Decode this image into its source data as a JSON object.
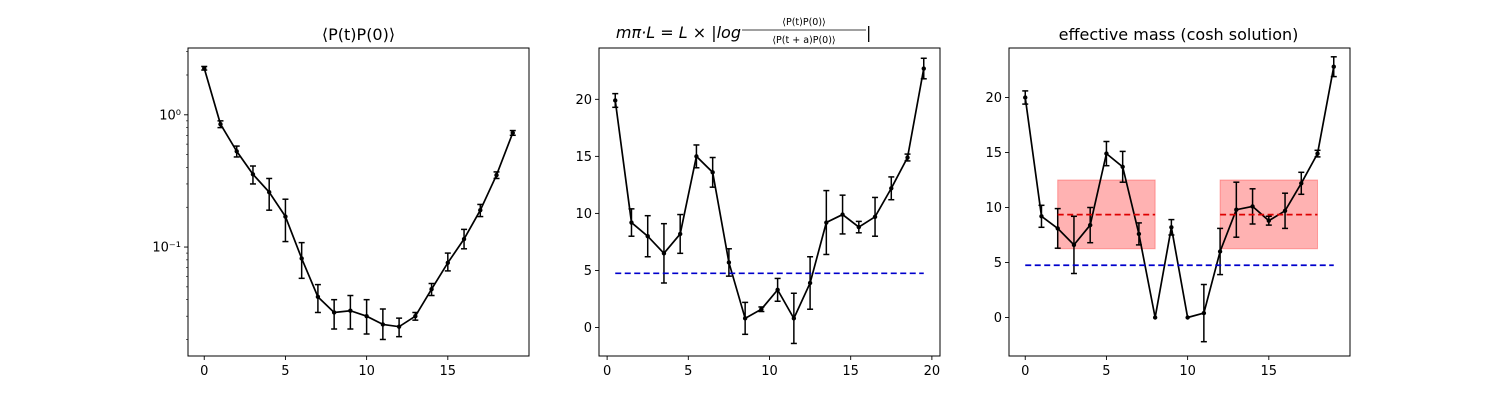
{
  "chart_data": [
    {
      "type": "line",
      "title": "⟨P(t)P(0)⟩",
      "yscale": "log",
      "xlim": [
        -1,
        20
      ],
      "ylim": [
        0.015,
        3.2
      ],
      "xticks": [
        0,
        5,
        10,
        15
      ],
      "yticks": [
        {
          "value": 1,
          "label": "10⁰"
        },
        {
          "value": 0.1,
          "label": "10⁻¹"
        }
      ],
      "series": [
        {
          "color": "#000000",
          "x": [
            0,
            1,
            2,
            3,
            4,
            5,
            6,
            7,
            8,
            9,
            10,
            11,
            12,
            13,
            14,
            15,
            16,
            17,
            18,
            19
          ],
          "y": [
            2.25,
            0.85,
            0.53,
            0.355,
            0.26,
            0.17,
            0.082,
            0.042,
            0.032,
            0.033,
            0.03,
            0.026,
            0.025,
            0.03,
            0.048,
            0.076,
            0.115,
            0.19,
            0.35,
            0.73
          ],
          "yerr_low": [
            2.18,
            0.8,
            0.48,
            0.3,
            0.19,
            0.11,
            0.058,
            0.032,
            0.024,
            0.024,
            0.022,
            0.02,
            0.021,
            0.028,
            0.043,
            0.066,
            0.097,
            0.17,
            0.33,
            0.7
          ],
          "yerr_high": [
            2.32,
            0.9,
            0.58,
            0.41,
            0.33,
            0.23,
            0.108,
            0.052,
            0.04,
            0.043,
            0.04,
            0.034,
            0.029,
            0.032,
            0.053,
            0.09,
            0.136,
            0.21,
            0.37,
            0.76
          ]
        }
      ]
    },
    {
      "type": "line",
      "title": "m_π·L = L × |log( ⟨P(t)P(0)⟩ / ⟨P(t+a)P(0)⟩ )|",
      "title_parts": {
        "lhs": "mπ·L = L × |log",
        "numerator": "⟨P(t)P(0)⟩",
        "denominator": "⟨P(t + a)P(0)⟩",
        "close": "|"
      },
      "xlim": [
        -0.5,
        20.5
      ],
      "ylim": [
        -2.5,
        24.5
      ],
      "xticks": [
        0,
        5,
        10,
        15,
        20
      ],
      "yticks": [
        0,
        5,
        10,
        15,
        20
      ],
      "series": [
        {
          "color": "#000000",
          "x": [
            0.5,
            1.5,
            2.5,
            3.5,
            4.5,
            5.5,
            6.5,
            7.5,
            8.5,
            9.5,
            10.5,
            11.5,
            12.5,
            13.5,
            14.5,
            15.5,
            16.5,
            17.5,
            18.5,
            19.5
          ],
          "y": [
            19.9,
            9.2,
            8.0,
            6.5,
            8.2,
            15.0,
            13.6,
            5.7,
            0.8,
            1.6,
            3.3,
            0.8,
            3.9,
            9.2,
            9.9,
            8.8,
            9.7,
            12.2,
            14.9,
            22.7
          ],
          "yerr": [
            0.6,
            1.2,
            1.8,
            2.6,
            1.7,
            1.0,
            1.3,
            1.2,
            1.4,
            0.2,
            1.0,
            2.2,
            2.3,
            2.8,
            1.7,
            0.5,
            1.7,
            1.0,
            0.3,
            0.9
          ]
        },
        {
          "color": "#0000cc",
          "style": "dashed",
          "x": [
            0.5,
            19.5
          ],
          "y": [
            4.75,
            4.75
          ]
        }
      ]
    },
    {
      "type": "line",
      "title": "effective mass (cosh solution)",
      "xlim": [
        -1,
        20
      ],
      "ylim": [
        -3.5,
        24.5
      ],
      "xticks": [
        0,
        5,
        10,
        15
      ],
      "yticks": [
        0,
        5,
        10,
        15,
        20
      ],
      "series": [
        {
          "color": "#000000",
          "x": [
            0,
            1,
            2,
            3,
            4,
            5,
            6,
            7,
            8,
            9,
            10,
            11,
            12,
            13,
            14,
            15,
            16,
            17,
            18,
            19
          ],
          "y": [
            20.0,
            9.2,
            8.1,
            6.6,
            8.4,
            14.9,
            13.7,
            7.6,
            0.0,
            8.2,
            0.0,
            0.4,
            6.0,
            9.8,
            10.1,
            8.8,
            9.7,
            12.2,
            14.9,
            22.8
          ],
          "yerr": [
            0.6,
            1.0,
            1.8,
            2.6,
            1.6,
            1.1,
            1.4,
            1.0,
            0,
            0.7,
            0,
            2.6,
            2.1,
            2.5,
            1.6,
            0.4,
            1.6,
            1.0,
            0.3,
            0.9
          ]
        },
        {
          "color": "#0000cc",
          "style": "dashed",
          "x": [
            0,
            19
          ],
          "y": [
            4.75,
            4.75
          ]
        },
        {
          "color": "#dd0000",
          "style": "dashed",
          "x": [
            2,
            8
          ],
          "y": [
            9.35,
            9.35
          ]
        },
        {
          "color": "#dd0000",
          "style": "dashed",
          "x": [
            12,
            18
          ],
          "y": [
            9.35,
            9.35
          ]
        }
      ],
      "bands": [
        {
          "x": [
            2,
            8
          ],
          "y": [
            6.25,
            12.5
          ],
          "color": "#ff0000",
          "opacity": 0.3
        },
        {
          "x": [
            12,
            18
          ],
          "y": [
            6.25,
            12.5
          ],
          "color": "#ff0000",
          "opacity": 0.3
        }
      ]
    }
  ]
}
